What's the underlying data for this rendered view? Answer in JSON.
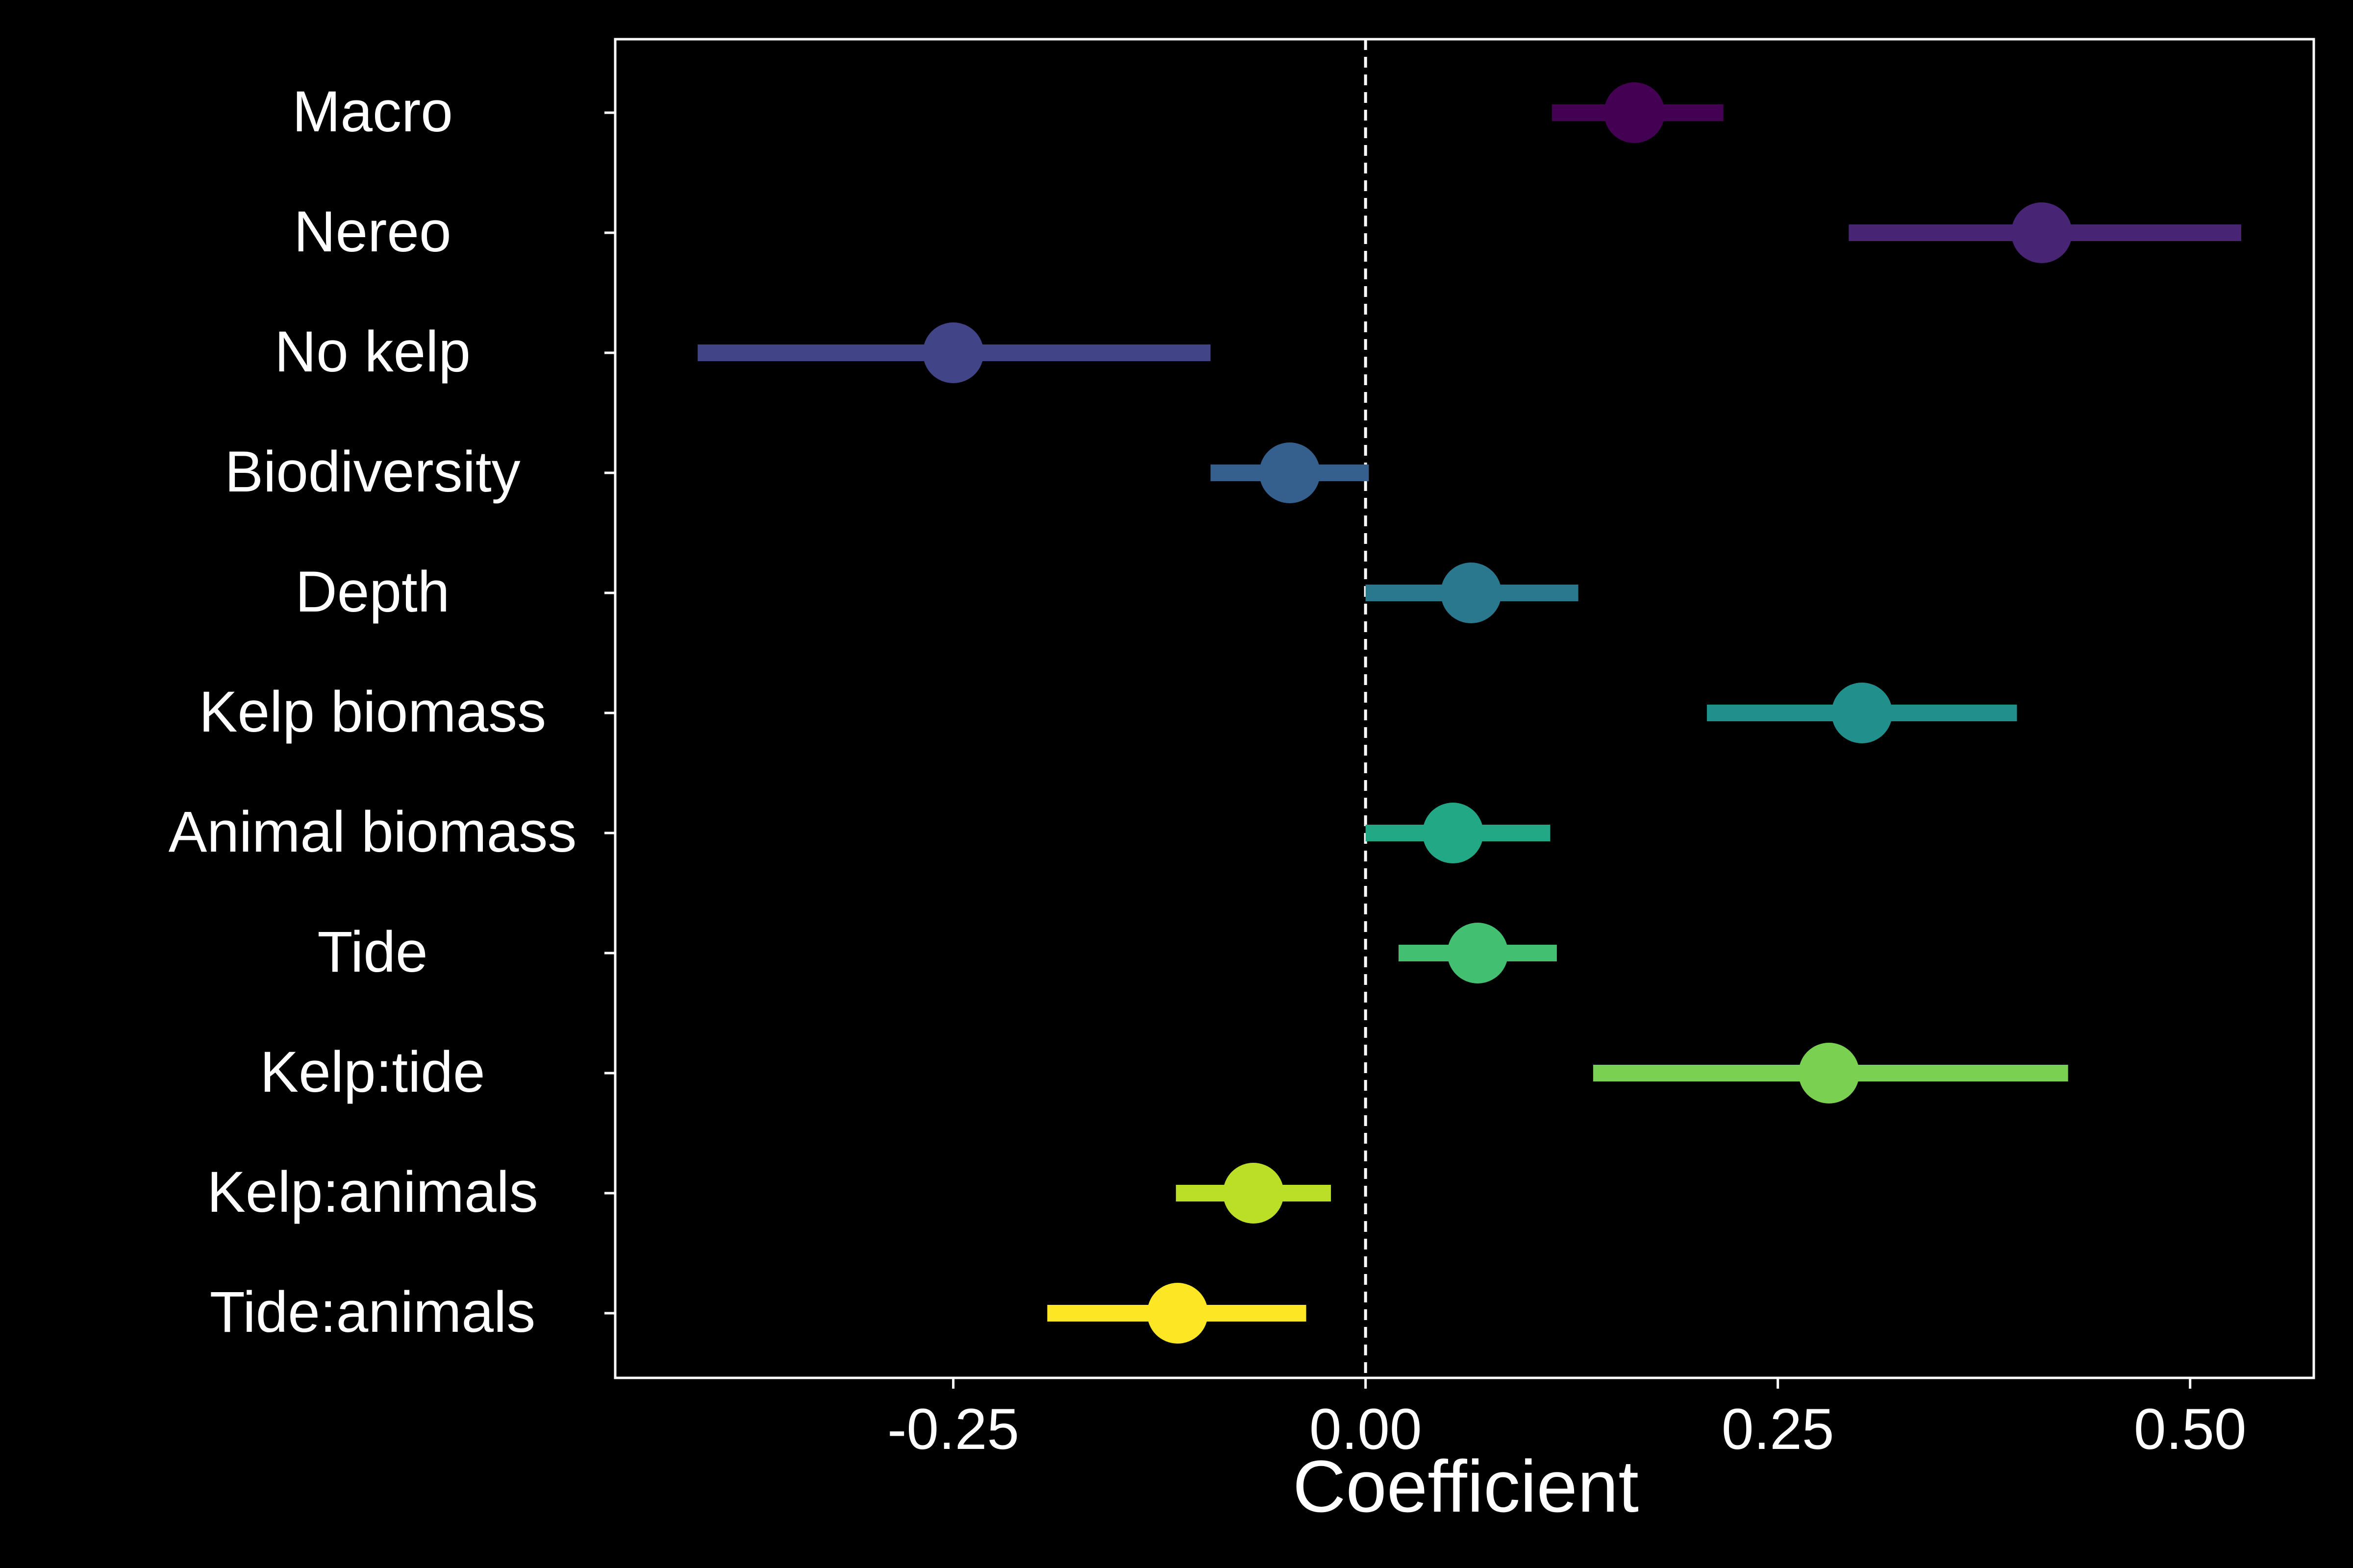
{
  "chart_data": {
    "type": "forest",
    "title": "",
    "xlabel": "Coefficient",
    "ylabel": "",
    "xlim": [
      -0.455,
      0.575
    ],
    "xticks": [
      -0.25,
      0.0,
      0.25,
      0.5
    ],
    "xtick_labels": [
      "-0.25",
      "0.00",
      "0.25",
      "0.50"
    ],
    "reference_line": {
      "x": 0,
      "style": "dashed"
    },
    "grid": false,
    "legend": "none",
    "background": "#000000",
    "foreground": "#ffffff",
    "terms": [
      {
        "label": "Macro",
        "estimate": 0.163,
        "lower": 0.113,
        "upper": 0.217,
        "color": "#440154"
      },
      {
        "label": "Nereo",
        "estimate": 0.41,
        "lower": 0.293,
        "upper": 0.531,
        "color": "#482475"
      },
      {
        "label": "No kelp",
        "estimate": -0.25,
        "lower": -0.405,
        "upper": -0.094,
        "color": "#414487"
      },
      {
        "label": "Biodiversity",
        "estimate": -0.046,
        "lower": -0.094,
        "upper": 0.002,
        "color": "#355F8D"
      },
      {
        "label": "Depth",
        "estimate": 0.064,
        "lower": 0.0,
        "upper": 0.129,
        "color": "#2A788E"
      },
      {
        "label": "Kelp biomass",
        "estimate": 0.301,
        "lower": 0.207,
        "upper": 0.395,
        "color": "#21908D"
      },
      {
        "label": "Animal biomass",
        "estimate": 0.053,
        "lower": 0.0,
        "upper": 0.112,
        "color": "#22A884"
      },
      {
        "label": "Tide",
        "estimate": 0.068,
        "lower": 0.02,
        "upper": 0.116,
        "color": "#43BF71"
      },
      {
        "label": "Kelp:tide",
        "estimate": 0.281,
        "lower": 0.138,
        "upper": 0.426,
        "color": "#7AD151"
      },
      {
        "label": "Kelp:animals",
        "estimate": -0.068,
        "lower": -0.115,
        "upper": -0.021,
        "color": "#BBDF27"
      },
      {
        "label": "Tide:animals",
        "estimate": -0.114,
        "lower": -0.193,
        "upper": -0.036,
        "color": "#FDE725"
      }
    ]
  }
}
